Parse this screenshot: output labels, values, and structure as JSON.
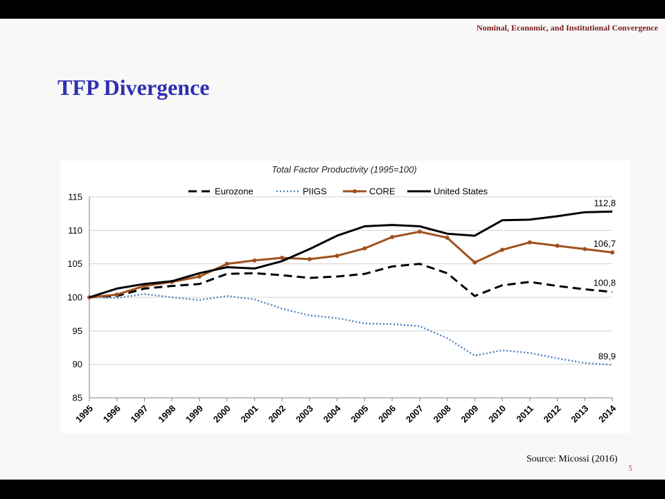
{
  "slide": {
    "subtitle": "Nominal, Economic, and Institutional Convergence",
    "title": "TFP Divergence",
    "source": "Source: Micossi (2016)",
    "page_number": "5"
  },
  "chart_data": {
    "type": "line",
    "title": "Total Factor Productivity (1995=100)",
    "x": [
      "1995",
      "1996",
      "1997",
      "1998",
      "1999",
      "2000",
      "2001",
      "2002",
      "2003",
      "2004",
      "2005",
      "2006",
      "2007",
      "2008",
      "2009",
      "2010",
      "2011",
      "2012",
      "2013",
      "2014"
    ],
    "ylim": [
      85,
      115
    ],
    "yticks": [
      85,
      90,
      95,
      100,
      105,
      110,
      115
    ],
    "grid": "horizontal",
    "legend": "top",
    "series": [
      {
        "name": "Eurozone",
        "style": "dashed",
        "color": "#000000",
        "values": [
          100,
          100.2,
          101.3,
          101.7,
          102.0,
          103.5,
          103.6,
          103.3,
          102.9,
          103.1,
          103.5,
          104.6,
          105.0,
          103.6,
          100.2,
          101.8,
          102.3,
          101.7,
          101.2,
          100.8
        ],
        "end_label": "100,8"
      },
      {
        "name": "PIIGS",
        "style": "dotted",
        "color": "#4f81bd",
        "values": [
          100,
          99.9,
          100.5,
          100.0,
          99.6,
          100.2,
          99.7,
          98.3,
          97.3,
          96.9,
          96.1,
          96.0,
          95.7,
          93.9,
          91.3,
          92.1,
          91.7,
          90.9,
          90.2,
          89.9
        ],
        "end_label": "89,9"
      },
      {
        "name": "CORE",
        "style": "solid-markers",
        "color": "#a0501e",
        "values": [
          100,
          100.4,
          101.7,
          102.3,
          103.1,
          105.0,
          105.5,
          105.9,
          105.7,
          106.2,
          107.3,
          109.0,
          109.8,
          108.9,
          105.2,
          107.1,
          108.2,
          107.7,
          107.2,
          106.7
        ],
        "end_label": "106,7"
      },
      {
        "name": "United States",
        "style": "solid",
        "color": "#000000",
        "values": [
          100,
          101.3,
          102.0,
          102.4,
          103.6,
          104.5,
          104.3,
          105.4,
          107.2,
          109.2,
          110.6,
          110.8,
          110.6,
          109.5,
          109.2,
          111.5,
          111.6,
          112.1,
          112.7,
          112.8
        ],
        "end_label": "112,8"
      }
    ]
  }
}
